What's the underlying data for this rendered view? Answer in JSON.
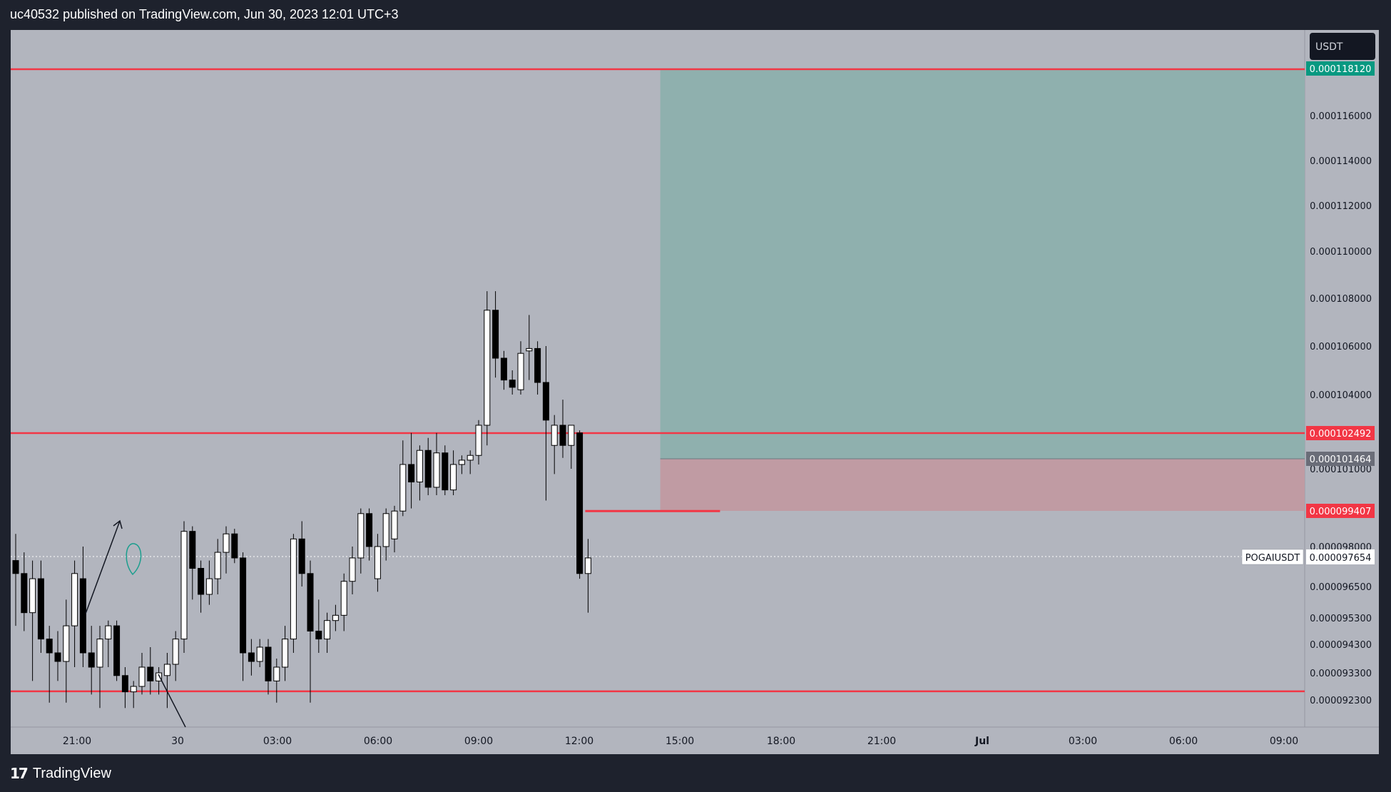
{
  "header": {
    "text": "uc40532 published on TradingView.com, Jun 30, 2023 12:01 UTC+3"
  },
  "footer": {
    "brand": "TradingView",
    "logo_glyph": "17"
  },
  "colors": {
    "background": "#b2b5be",
    "page": "#1e222d",
    "up": "#ffffff",
    "down": "#000000",
    "level_line": "#f23645",
    "target_zone": "#8fb0ae",
    "stop_zone": "#c09ba3",
    "target_label": "#089981",
    "stop_label": "#f23645",
    "entry_label": "#6a6d78"
  },
  "chart_data": {
    "type": "candlestick",
    "symbol": "POGAIUSDT",
    "currency_badge": "USDT",
    "last_price": "0.000097654",
    "timeframe_minutes": 30,
    "x_ticks": [
      "21:00",
      "30",
      "03:00",
      "06:00",
      "09:00",
      "12:00",
      "15:00",
      "18:00",
      "21:00",
      "Jul",
      "03:00",
      "06:00",
      "09:00"
    ],
    "y_ticks": [
      "0.000116000",
      "0.000114000",
      "0.000112000",
      "0.000110000",
      "0.000108000",
      "0.000106000",
      "0.000104000",
      "0.000101000",
      "0.000098000",
      "0.000096500",
      "0.000095300",
      "0.000094300",
      "0.000093300",
      "0.000092300"
    ],
    "horizontal_levels": [
      0.00011832,
      0.000102492,
      9.262e-05
    ],
    "support_line": {
      "price": 9.94e-05,
      "from": "05:30",
      "to": "13:00"
    },
    "position": {
      "side": "long",
      "target": "0.000118120",
      "entry": "0.000101464",
      "stop": "0.000099407",
      "target_value": 0.00011812,
      "entry_value": 0.000101464,
      "stop_value": 9.9407e-05,
      "from": "10:00"
    },
    "price_labels": {
      "level": "0.000102492"
    },
    "candles": [
      {
        "t": "19:30",
        "o": 9.75e-05,
        "h": 9.85e-05,
        "l": 9.5e-05,
        "c": 9.7e-05
      },
      {
        "t": "20:00",
        "o": 9.7e-05,
        "h": 9.78e-05,
        "l": 9.48e-05,
        "c": 9.55e-05
      },
      {
        "t": "20:30",
        "o": 9.55e-05,
        "h": 9.75e-05,
        "l": 9.3e-05,
        "c": 9.68e-05
      },
      {
        "t": "21:00",
        "o": 9.68e-05,
        "h": 9.75e-05,
        "l": 9.4e-05,
        "c": 9.45e-05
      },
      {
        "t": "21:30",
        "o": 9.45e-05,
        "h": 9.5e-05,
        "l": 9.22e-05,
        "c": 9.4e-05
      },
      {
        "t": "22:00",
        "o": 9.4e-05,
        "h": 9.48e-05,
        "l": 9.3e-05,
        "c": 9.37e-05
      },
      {
        "t": "22:30",
        "o": 9.37e-05,
        "h": 9.6e-05,
        "l": 9.22e-05,
        "c": 9.5e-05
      },
      {
        "t": "23:00",
        "o": 9.5e-05,
        "h": 9.75e-05,
        "l": 9.35e-05,
        "c": 9.7e-05
      },
      {
        "t": "23:30",
        "o": 9.68e-05,
        "h": 9.8e-05,
        "l": 9.35e-05,
        "c": 9.4e-05
      },
      {
        "t": "00:00",
        "o": 9.4e-05,
        "h": 9.5e-05,
        "l": 9.25e-05,
        "c": 9.35e-05
      },
      {
        "t": "00:30",
        "o": 9.35e-05,
        "h": 9.5e-05,
        "l": 9.2e-05,
        "c": 9.45e-05
      },
      {
        "t": "01:00",
        "o": 9.45e-05,
        "h": 9.52e-05,
        "l": 9.35e-05,
        "c": 9.5e-05
      },
      {
        "t": "01:30",
        "o": 9.5e-05,
        "h": 9.52e-05,
        "l": 9.3e-05,
        "c": 9.32e-05
      },
      {
        "t": "02:00",
        "o": 9.32e-05,
        "h": 9.35e-05,
        "l": 9.2e-05,
        "c": 9.26e-05
      },
      {
        "t": "02:30",
        "o": 9.26e-05,
        "h": 9.3e-05,
        "l": 9.2e-05,
        "c": 9.28e-05
      },
      {
        "t": "03:00",
        "o": 9.28e-05,
        "h": 9.4e-05,
        "l": 9.25e-05,
        "c": 9.35e-05
      },
      {
        "t": "03:30",
        "o": 9.35e-05,
        "h": 9.42e-05,
        "l": 9.25e-05,
        "c": 9.3e-05
      },
      {
        "t": "04:00",
        "o": 9.3e-05,
        "h": 9.35e-05,
        "l": 9.25e-05,
        "c": 9.33e-05
      },
      {
        "t": "04:30",
        "o": 9.32e-05,
        "h": 9.4e-05,
        "l": 9.2e-05,
        "c": 9.36e-05
      },
      {
        "t": "05:00",
        "o": 9.36e-05,
        "h": 9.48e-05,
        "l": 9.3e-05,
        "c": 9.45e-05
      },
      {
        "t": "05:30",
        "o": 9.45e-05,
        "h": 9.9e-05,
        "l": 9.4e-05,
        "c": 9.86e-05
      },
      {
        "t": "06:00",
        "o": 9.86e-05,
        "h": 9.88e-05,
        "l": 9.6e-05,
        "c": 9.72e-05
      },
      {
        "t": "06:30",
        "o": 9.72e-05,
        "h": 9.75e-05,
        "l": 9.55e-05,
        "c": 9.62e-05
      },
      {
        "t": "07:00",
        "o": 9.62e-05,
        "h": 9.75e-05,
        "l": 9.58e-05,
        "c": 9.68e-05
      },
      {
        "t": "07:30",
        "o": 9.68e-05,
        "h": 9.83e-05,
        "l": 9.62e-05,
        "c": 9.78e-05
      },
      {
        "t": "08:00",
        "o": 9.78e-05,
        "h": 9.88e-05,
        "l": 9.7e-05,
        "c": 9.85e-05
      },
      {
        "t": "08:30",
        "o": 9.85e-05,
        "h": 9.87e-05,
        "l": 9.74e-05,
        "c": 9.76e-05
      },
      {
        "t": "09:00",
        "o": 9.76e-05,
        "h": 9.78e-05,
        "l": 9.3e-05,
        "c": 9.4e-05
      },
      {
        "t": "09:30",
        "o": 9.4e-05,
        "h": 9.45e-05,
        "l": 9.32e-05,
        "c": 9.37e-05
      },
      {
        "t": "10:00",
        "o": 9.37e-05,
        "h": 9.45e-05,
        "l": 9.35e-05,
        "c": 9.42e-05
      },
      {
        "t": "10:30",
        "o": 9.42e-05,
        "h": 9.45e-05,
        "l": 9.25e-05,
        "c": 9.3e-05
      },
      {
        "t": "11:00",
        "o": 9.3e-05,
        "h": 9.38e-05,
        "l": 9.22e-05,
        "c": 9.35e-05
      },
      {
        "t": "11:30",
        "o": 9.35e-05,
        "h": 9.5e-05,
        "l": 9.3e-05,
        "c": 9.45e-05
      },
      {
        "t": "12:00",
        "o": 9.45e-05,
        "h": 9.85e-05,
        "l": 9.4e-05,
        "c": 9.83e-05
      },
      {
        "t": "12:30",
        "o": 9.83e-05,
        "h": 9.9e-05,
        "l": 9.65e-05,
        "c": 9.7e-05
      },
      {
        "t": "13:00",
        "o": 9.7e-05,
        "h": 9.75e-05,
        "l": 9.22e-05,
        "c": 9.48e-05
      },
      {
        "t": "13:30",
        "o": 9.48e-05,
        "h": 9.6e-05,
        "l": 9.4e-05,
        "c": 9.45e-05
      },
      {
        "t": "14:00",
        "o": 9.45e-05,
        "h": 9.55e-05,
        "l": 9.4e-05,
        "c": 9.52e-05
      },
      {
        "t": "14:30",
        "o": 9.52e-05,
        "h": 9.58e-05,
        "l": 9.48e-05,
        "c": 9.54e-05
      },
      {
        "t": "15:00",
        "o": 9.54e-05,
        "h": 9.7e-05,
        "l": 9.48e-05,
        "c": 9.67e-05
      },
      {
        "t": "15:30",
        "o": 9.67e-05,
        "h": 9.8e-05,
        "l": 9.62e-05,
        "c": 9.76e-05
      },
      {
        "t": "16:00",
        "o": 9.76e-05,
        "h": 9.95e-05,
        "l": 9.7e-05,
        "c": 9.93e-05
      },
      {
        "t": "16:30",
        "o": 9.93e-05,
        "h": 9.95e-05,
        "l": 9.75e-05,
        "c": 9.8e-05
      },
      {
        "t": "17:00",
        "o": 9.68e-05,
        "h": 9.85e-05,
        "l": 9.63e-05,
        "c": 9.8e-05
      },
      {
        "t": "17:30",
        "o": 9.8e-05,
        "h": 9.95e-05,
        "l": 9.75e-05,
        "c": 9.93e-05
      },
      {
        "t": "18:00",
        "o": 9.83e-05,
        "h": 9.96e-05,
        "l": 9.78e-05,
        "c": 9.94e-05
      },
      {
        "t": "18:30",
        "o": 9.94e-05,
        "h": 0.0001022,
        "l": 9.92e-05,
        "c": 0.0001012
      },
      {
        "t": "19:00",
        "o": 0.0001012,
        "h": 0.0001025,
        "l": 9.95e-05,
        "c": 0.0001005
      },
      {
        "t": "19:30",
        "o": 0.0001005,
        "h": 0.000102,
        "l": 9.98e-05,
        "c": 0.0001018
      },
      {
        "t": "20:00",
        "o": 0.0001018,
        "h": 0.0001023,
        "l": 0.0001,
        "c": 0.0001003
      },
      {
        "t": "20:30",
        "o": 0.0001003,
        "h": 0.0001025,
        "l": 0.0001,
        "c": 0.0001017
      },
      {
        "t": "21:00",
        "o": 0.0001017,
        "h": 0.000102,
        "l": 0.0001,
        "c": 0.0001002
      },
      {
        "t": "21:30",
        "o": 0.0001002,
        "h": 0.0001018,
        "l": 0.0001,
        "c": 0.0001012
      },
      {
        "t": "22:00",
        "o": 0.0001012,
        "h": 0.0001016,
        "l": 0.0001008,
        "c": 0.0001014
      },
      {
        "t": "22:30",
        "o": 0.0001014,
        "h": 0.0001018,
        "l": 0.0001008,
        "c": 0.0001016
      },
      {
        "t": "23:00",
        "o": 0.0001016,
        "h": 0.000103,
        "l": 0.0001012,
        "c": 0.0001028
      },
      {
        "t": "23:30",
        "o": 0.0001028,
        "h": 0.0001083,
        "l": 0.000102,
        "c": 0.0001075
      },
      {
        "t": "00:00",
        "o": 0.0001075,
        "h": 0.0001083,
        "l": 0.0001047,
        "c": 0.0001055
      },
      {
        "t": "00:30",
        "o": 0.0001055,
        "h": 0.0001058,
        "l": 0.0001042,
        "c": 0.0001046
      },
      {
        "t": "01:00",
        "o": 0.0001046,
        "h": 0.000105,
        "l": 0.000104,
        "c": 0.0001043
      },
      {
        "t": "01:30",
        "o": 0.0001042,
        "h": 0.0001062,
        "l": 0.000104,
        "c": 0.0001057
      },
      {
        "t": "02:00",
        "o": 0.0001058,
        "h": 0.0001073,
        "l": 0.0001046,
        "c": 0.0001059
      },
      {
        "t": "02:30",
        "o": 0.0001059,
        "h": 0.0001062,
        "l": 0.000104,
        "c": 0.0001045
      },
      {
        "t": "03:00",
        "o": 0.0001045,
        "h": 0.000106,
        "l": 9.98e-05,
        "c": 0.000103
      },
      {
        "t": "03:30",
        "o": 0.000102,
        "h": 0.0001032,
        "l": 0.0001008,
        "c": 0.0001028
      },
      {
        "t": "04:00",
        "o": 0.0001028,
        "h": 0.0001038,
        "l": 0.0001015,
        "c": 0.000102
      },
      {
        "t": "04:30",
        "o": 0.000102,
        "h": 0.0001028,
        "l": 0.000101,
        "c": 0.0001028
      },
      {
        "t": "05:00",
        "o": 0.0001025,
        "h": 0.0001026,
        "l": 9.68e-05,
        "c": 9.7e-05
      },
      {
        "t": "05:30",
        "o": 9.7e-05,
        "h": 9.83e-05,
        "l": 9.55e-05,
        "c": 9.76e-05
      }
    ]
  }
}
